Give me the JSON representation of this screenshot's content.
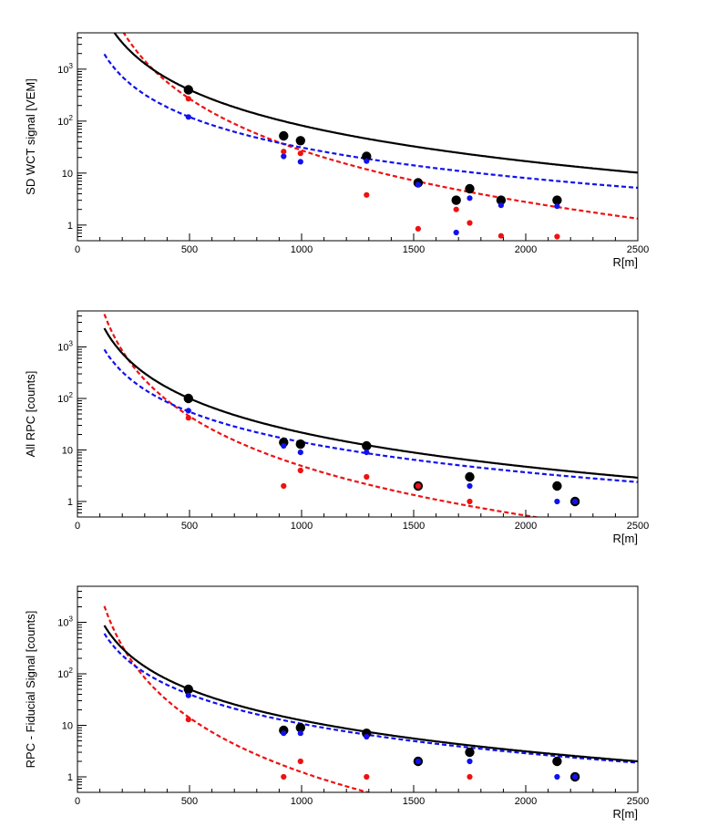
{
  "chart_data": [
    {
      "type": "scatter",
      "ylabel": "SD WCT signal [VEM]",
      "xlabel": "R[m]",
      "xlim": [
        0,
        2500
      ],
      "ylim": [
        0.5,
        5000
      ],
      "yscale": "log",
      "x_ticks": [
        0,
        500,
        1000,
        1500,
        2000,
        2500
      ],
      "y_ticks": [
        {
          "v": 1,
          "base": "1",
          "exp": ""
        },
        {
          "v": 10,
          "base": "10",
          "exp": ""
        },
        {
          "v": 100,
          "base": "10",
          "exp": "2"
        },
        {
          "v": 1000,
          "base": "10",
          "exp": "3"
        }
      ],
      "points": {
        "total": {
          "color": "#000000",
          "x": [
            495,
            920,
            995,
            1290,
            1520,
            1690,
            1750,
            1890,
            2140
          ],
          "y": [
            400,
            52,
            42,
            21,
            6.5,
            3.0,
            5.0,
            3.0,
            3.0
          ]
        },
        "electromagnetic": {
          "color": "#ee1111",
          "x": [
            495,
            920,
            995,
            1290,
            1520,
            1690,
            1750,
            1890,
            2140
          ],
          "y": [
            270,
            26,
            24,
            3.8,
            0.85,
            2.0,
            1.1,
            0.62,
            0.6
          ]
        },
        "muonic": {
          "color": "#1111ee",
          "x": [
            495,
            920,
            995,
            1290,
            1520,
            1690,
            1750,
            1890,
            2140
          ],
          "y": [
            120,
            21,
            16.5,
            17,
            6.0,
            0.72,
            3.3,
            2.4,
            2.3
          ]
        }
      },
      "fits": {
        "total": {
          "color": "#000000",
          "dashed": false,
          "A": 400,
          "n": 2.28,
          "xmin": 120,
          "xmax": 2500
        },
        "electromagnetic": {
          "color": "#ee1111",
          "dashed": true,
          "A": 270,
          "n": 3.3,
          "xmin": 120,
          "xmax": 2500
        },
        "muonic": {
          "color": "#1111ee",
          "dashed": true,
          "A": 120,
          "n": 1.95,
          "xmin": 120,
          "xmax": 2500
        }
      }
    },
    {
      "type": "scatter",
      "ylabel": "All RPC [counts]",
      "xlabel": "R[m]",
      "xlim": [
        0,
        2500
      ],
      "ylim": [
        0.5,
        5000
      ],
      "yscale": "log",
      "x_ticks": [
        0,
        500,
        1000,
        1500,
        2000,
        2500
      ],
      "y_ticks": [
        {
          "v": 1,
          "base": "1",
          "exp": ""
        },
        {
          "v": 10,
          "base": "10",
          "exp": ""
        },
        {
          "v": 100,
          "base": "10",
          "exp": "2"
        },
        {
          "v": 1000,
          "base": "10",
          "exp": "3"
        }
      ],
      "points": {
        "total": {
          "color": "#000000",
          "x": [
            495,
            920,
            995,
            1290,
            1520,
            1750,
            2140,
            2220
          ],
          "y": [
            100,
            14,
            13,
            12,
            2.0,
            3.0,
            2.0,
            1.0
          ]
        },
        "electromagnetic": {
          "color": "#ee1111",
          "x": [
            495,
            920,
            995,
            1290,
            1520,
            1750
          ],
          "y": [
            42,
            2.0,
            4.0,
            3.0,
            2.0,
            1.0
          ]
        },
        "muonic": {
          "color": "#1111ee",
          "x": [
            495,
            920,
            995,
            1290,
            1520,
            1750,
            2140,
            2220
          ],
          "y": [
            58,
            12,
            9.0,
            9.0,
            2.0,
            2.0,
            1.0,
            1.0
          ]
        }
      },
      "fits": {
        "total": {
          "color": "#000000",
          "dashed": false,
          "A": 100,
          "n": 2.2,
          "xmin": 120,
          "xmax": 2500
        },
        "electromagnetic": {
          "color": "#ee1111",
          "dashed": true,
          "A": 45,
          "n": 3.2,
          "xmin": 120,
          "xmax": 2500
        },
        "muonic": {
          "color": "#1111ee",
          "dashed": true,
          "A": 55,
          "n": 1.95,
          "xmin": 120,
          "xmax": 2500
        }
      }
    },
    {
      "type": "scatter",
      "ylabel": "RPC - Fiducial Signal [counts]",
      "xlabel": "R[m]",
      "xlim": [
        0,
        2500
      ],
      "ylim": [
        0.5,
        5000
      ],
      "yscale": "log",
      "x_ticks": [
        0,
        500,
        1000,
        1500,
        2000,
        2500
      ],
      "y_ticks": [
        {
          "v": 1,
          "base": "1",
          "exp": ""
        },
        {
          "v": 10,
          "base": "10",
          "exp": ""
        },
        {
          "v": 100,
          "base": "10",
          "exp": "2"
        },
        {
          "v": 1000,
          "base": "10",
          "exp": "3"
        }
      ],
      "points": {
        "total": {
          "color": "#000000",
          "x": [
            495,
            920,
            995,
            1290,
            1520,
            1750,
            2140,
            2220
          ],
          "y": [
            50,
            8.0,
            9.0,
            7.0,
            2.0,
            3.0,
            2.0,
            1.0
          ]
        },
        "electromagnetic": {
          "color": "#ee1111",
          "x": [
            495,
            920,
            995,
            1290,
            1750
          ],
          "y": [
            13,
            1.0,
            2.0,
            1.0,
            1.0
          ]
        },
        "muonic": {
          "color": "#1111ee",
          "x": [
            495,
            920,
            995,
            1290,
            1520,
            1750,
            2140,
            2220
          ],
          "y": [
            38,
            7.0,
            7.0,
            6.0,
            2.0,
            2.0,
            1.0,
            1.0
          ]
        }
      },
      "fits": {
        "total": {
          "color": "#000000",
          "dashed": false,
          "A": 50,
          "n": 2.0,
          "xmin": 120,
          "xmax": 2500
        },
        "electromagnetic": {
          "color": "#ee1111",
          "dashed": true,
          "A": 14,
          "n": 3.5,
          "xmin": 120,
          "xmax": 2500
        },
        "muonic": {
          "color": "#1111ee",
          "dashed": true,
          "A": 40,
          "n": 1.9,
          "xmin": 120,
          "xmax": 2500
        }
      }
    }
  ]
}
